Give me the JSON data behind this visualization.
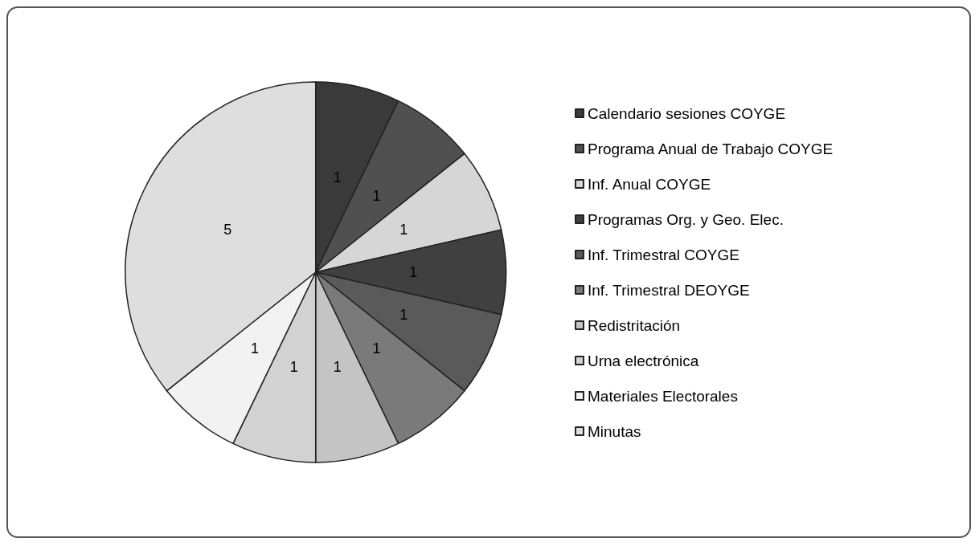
{
  "chart_data": {
    "type": "pie",
    "categories": [
      "Calendario sesiones COYGE",
      "Programa Anual de Trabajo COYGE",
      "Inf. Anual COYGE",
      "Programas Org. y Geo. Elec.",
      "Inf. Trimestral COYGE",
      "Inf. Trimestral DEOYGE",
      "Redistritación",
      "Urna electrónica",
      "Materiales Electorales",
      "Minutas"
    ],
    "values": [
      1,
      1,
      1,
      1,
      1,
      1,
      1,
      1,
      1,
      5
    ],
    "colors": [
      "#3a3a3a",
      "#505050",
      "#d6d6d6",
      "#404040",
      "#5a5a5a",
      "#7a7a7a",
      "#c4c4c4",
      "#d2d2d2",
      "#f2f2f2",
      "#dedede"
    ],
    "data_labels": true,
    "legend": "right"
  }
}
